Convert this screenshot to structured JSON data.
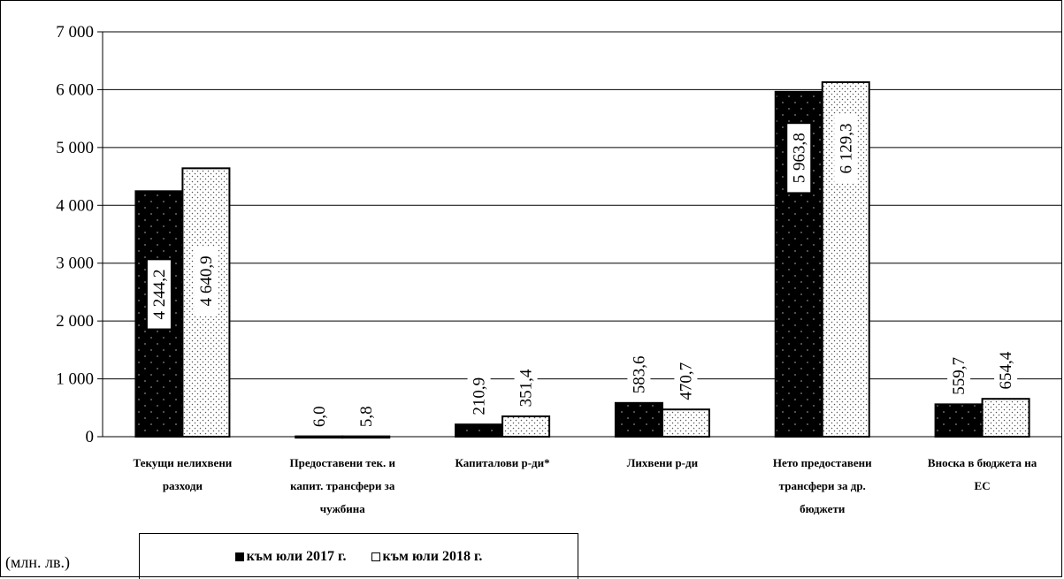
{
  "chart_data": {
    "type": "bar",
    "unit_label": "(млн. лв.)",
    "categories": [
      [
        "Текущи нелихвени",
        "разходи"
      ],
      [
        "Предоставени тек. и",
        "капит. трансфери за",
        "чужбина"
      ],
      [
        "Капиталови р-ди*"
      ],
      [
        "Лихвени р-ди"
      ],
      [
        "Нето предоставени",
        "трансфери за др.",
        "бюджети"
      ],
      [
        "Вноска в бюджета на",
        "ЕС"
      ]
    ],
    "series": [
      {
        "name": "към юли 2017 г.",
        "values": [
          4244.2,
          6.0,
          210.9,
          583.6,
          5963.8,
          559.7
        ],
        "labels": [
          "4 244,2",
          "6,0",
          "210,9",
          "583,6",
          "5 963,8",
          "559,7"
        ],
        "color": "#000000"
      },
      {
        "name": "към юли 2018 г.",
        "values": [
          4640.9,
          5.8,
          351.4,
          470.7,
          6129.3,
          654.4
        ],
        "labels": [
          "4 640,9",
          "5,8",
          "351,4",
          "470,7",
          "6 129,3",
          "654,4"
        ],
        "color": "#ffffff"
      }
    ],
    "ylim": [
      0,
      7000
    ],
    "yticks": [
      0,
      1000,
      2000,
      3000,
      4000,
      5000,
      6000,
      7000
    ],
    "ytick_labels": [
      "0",
      "1 000",
      "2 000",
      "3 000",
      "4 000",
      "5 000",
      "6 000",
      "7 000"
    ],
    "grid": true,
    "legend": "bottom"
  }
}
